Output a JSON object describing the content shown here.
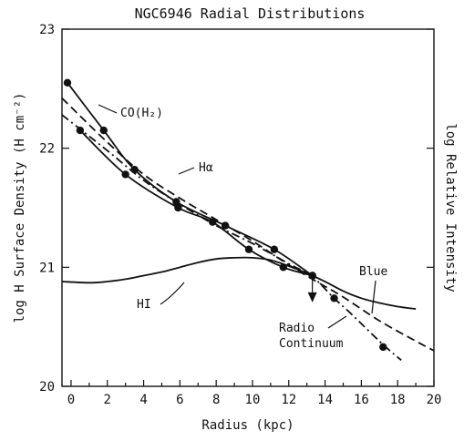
{
  "chart_data": {
    "type": "line",
    "title": "NGC6946 Radial Distributions",
    "xlabel": "Radius (kpc)",
    "ylabel": "log H Surface Density (H cm⁻²)",
    "ylabel_right": "log Relative Intensity",
    "xlim": [
      -0.5,
      20
    ],
    "ylim": [
      20,
      23
    ],
    "xticks": [
      "0",
      "2",
      "4",
      "6",
      "8",
      "10",
      "12",
      "14",
      "16",
      "18",
      "20"
    ],
    "yticks": [
      "20",
      "21",
      "22",
      "23"
    ],
    "grid": false,
    "series": [
      {
        "name": "CO(H₂)",
        "style": "solid",
        "x": [
          -0.2,
          1.8,
          3.5,
          5.8,
          8.5,
          11.2,
          13.3
        ],
        "y": [
          22.55,
          22.15,
          21.82,
          21.55,
          21.35,
          21.15,
          20.93
        ]
      },
      {
        "name": "Hα",
        "style": "solid",
        "x": [
          0.5,
          3.0,
          5.9,
          7.8,
          9.8,
          11.7,
          13.3
        ],
        "y": [
          22.15,
          21.78,
          21.5,
          21.38,
          21.15,
          21.0,
          20.93
        ]
      },
      {
        "name": "HI",
        "style": "solid",
        "x": [
          -0.5,
          1,
          2,
          3,
          4,
          5,
          6,
          7,
          8,
          9,
          10,
          11,
          12,
          13,
          14,
          15,
          16,
          17,
          18,
          19
        ],
        "y": [
          20.88,
          20.87,
          20.88,
          20.9,
          20.93,
          20.96,
          21.0,
          21.04,
          21.07,
          21.08,
          21.08,
          21.06,
          21.01,
          20.95,
          20.88,
          20.8,
          20.74,
          20.7,
          20.67,
          20.65
        ]
      },
      {
        "name": "Blue",
        "style": "dashed",
        "x": [
          -0.5,
          2,
          4,
          6,
          8,
          10,
          12,
          13.3,
          15,
          17,
          19,
          20
        ],
        "y": [
          22.42,
          22.05,
          21.78,
          21.58,
          21.4,
          21.22,
          21.02,
          20.9,
          20.75,
          20.55,
          20.38,
          20.3
        ]
      },
      {
        "name": "Radio Continuum",
        "style": "dashdot",
        "x": [
          -0.5,
          2,
          4,
          6,
          8,
          10,
          12,
          13.3,
          14.5,
          15.5,
          17.2,
          18.2
        ],
        "y": [
          22.28,
          21.98,
          21.73,
          21.53,
          21.35,
          21.2,
          21.03,
          20.92,
          20.74,
          20.6,
          20.35,
          20.22
        ]
      }
    ],
    "upper_limit": {
      "x": 13.3,
      "y": 20.93,
      "to": 20.72
    },
    "extra_points": [
      {
        "x": 14.5,
        "y": 20.74
      },
      {
        "x": 17.2,
        "y": 20.33
      }
    ],
    "annotations": {
      "co": "CO(H₂)",
      "ha": "Hα",
      "hi": "HI",
      "blue": "Blue",
      "radio_line1": "Radio",
      "radio_line2": "Continuum"
    }
  }
}
